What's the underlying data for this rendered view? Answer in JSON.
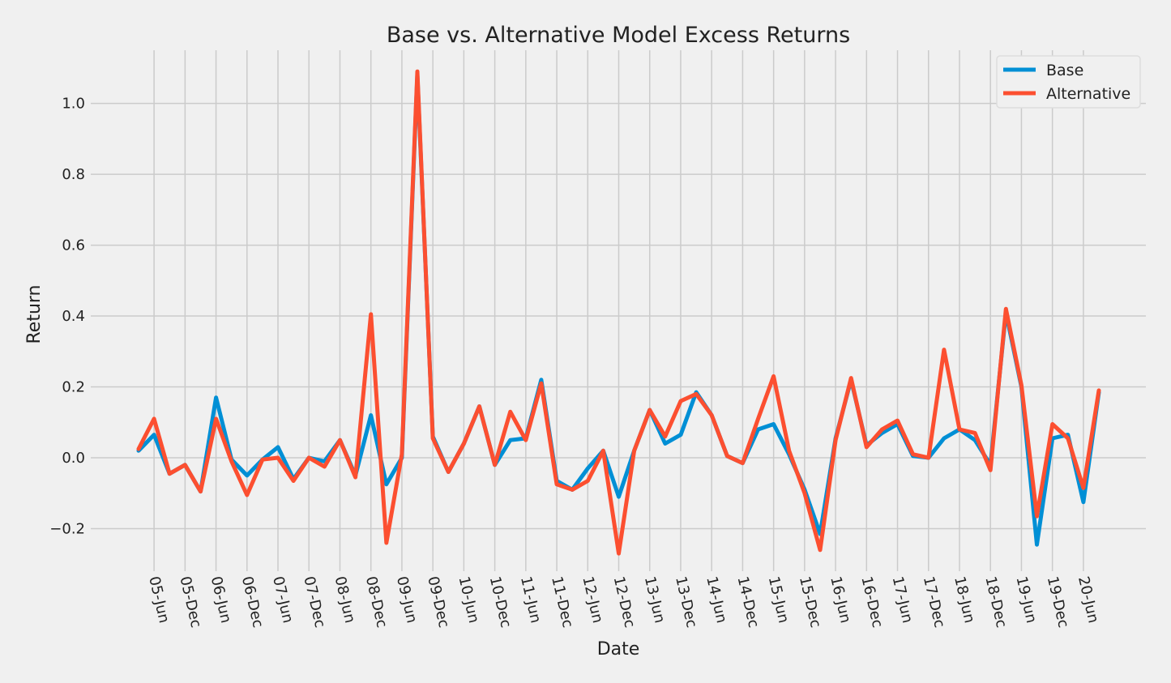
{
  "chart_data": {
    "type": "line",
    "title": "Base vs. Alternative Model Excess Returns",
    "xlabel": "Date",
    "ylabel": "Return",
    "ylim": [
      -0.32,
      1.15
    ],
    "grid": true,
    "legend_position": "top-right",
    "y_ticks": [
      -0.2,
      0.0,
      0.2,
      0.4,
      0.6,
      0.8,
      1.0
    ],
    "y_tick_labels": [
      "−0.2",
      "0.0",
      "0.2",
      "0.4",
      "0.6",
      "0.8",
      "1.0"
    ],
    "x_tick_labels": [
      "05-Jun",
      "05-Dec",
      "06-Jun",
      "06-Dec",
      "07-Jun",
      "07-Dec",
      "08-Jun",
      "08-Dec",
      "09-Jun",
      "09-Dec",
      "10-Jun",
      "10-Dec",
      "11-Jun",
      "11-Dec",
      "12-Jun",
      "12-Dec",
      "13-Jun",
      "13-Dec",
      "14-Jun",
      "14-Dec",
      "15-Jun",
      "15-Dec",
      "16-Jun",
      "16-Dec",
      "17-Jun",
      "17-Dec",
      "18-Jun",
      "18-Dec",
      "19-Jun",
      "19-Dec",
      "20-Jun"
    ],
    "x": [
      "2005-03",
      "2005-06",
      "2005-09",
      "2005-12",
      "2006-03",
      "2006-06",
      "2006-09",
      "2006-12",
      "2007-03",
      "2007-06",
      "2007-09",
      "2007-12",
      "2008-03",
      "2008-06",
      "2008-09",
      "2008-12",
      "2009-03",
      "2009-06",
      "2009-09",
      "2009-12",
      "2010-03",
      "2010-06",
      "2010-09",
      "2010-12",
      "2011-03",
      "2011-06",
      "2011-09",
      "2011-12",
      "2012-03",
      "2012-06",
      "2012-09",
      "2012-12",
      "2013-03",
      "2013-06",
      "2013-09",
      "2013-12",
      "2014-03",
      "2014-06",
      "2014-09",
      "2014-12",
      "2015-03",
      "2015-06",
      "2015-09",
      "2015-12",
      "2016-03",
      "2016-06",
      "2016-09",
      "2016-12",
      "2017-03",
      "2017-06",
      "2017-09",
      "2017-12",
      "2018-03",
      "2018-06",
      "2018-09",
      "2018-12",
      "2019-03",
      "2019-06",
      "2019-09",
      "2019-12",
      "2020-03",
      "2020-06",
      "2020-09"
    ],
    "series": [
      {
        "name": "Base",
        "color": "#008fd5",
        "values": [
          0.02,
          0.065,
          -0.045,
          -0.02,
          -0.095,
          0.17,
          -0.005,
          -0.05,
          -0.005,
          0.03,
          -0.06,
          0.0,
          -0.01,
          0.05,
          -0.05,
          0.12,
          -0.075,
          0.0,
          1.08,
          0.06,
          -0.04,
          0.04,
          0.145,
          -0.02,
          0.05,
          0.055,
          0.22,
          -0.065,
          -0.09,
          -0.03,
          0.02,
          -0.11,
          0.02,
          0.135,
          0.04,
          0.065,
          0.185,
          0.12,
          0.005,
          -0.015,
          0.08,
          0.095,
          0.01,
          -0.09,
          -0.215,
          0.055,
          0.22,
          0.035,
          0.07,
          0.095,
          0.005,
          0.0,
          0.055,
          0.08,
          0.05,
          -0.02,
          0.41,
          0.2,
          -0.245,
          0.055,
          0.065,
          -0.125,
          0.185
        ]
      },
      {
        "name": "Alternative",
        "color": "#fc4f30",
        "values": [
          0.025,
          0.11,
          -0.045,
          -0.02,
          -0.095,
          0.11,
          -0.01,
          -0.105,
          -0.005,
          0.0,
          -0.065,
          0.0,
          -0.025,
          0.05,
          -0.055,
          0.405,
          -0.24,
          0.01,
          1.09,
          0.055,
          -0.04,
          0.04,
          0.145,
          -0.02,
          0.13,
          0.05,
          0.21,
          -0.075,
          -0.09,
          -0.065,
          0.02,
          -0.27,
          0.02,
          0.135,
          0.06,
          0.16,
          0.18,
          0.12,
          0.005,
          -0.015,
          0.11,
          0.23,
          0.02,
          -0.1,
          -0.26,
          0.05,
          0.225,
          0.03,
          0.08,
          0.105,
          0.01,
          0.0,
          0.305,
          0.08,
          0.07,
          -0.035,
          0.42,
          0.205,
          -0.165,
          0.095,
          0.055,
          -0.085,
          0.19
        ]
      }
    ]
  }
}
